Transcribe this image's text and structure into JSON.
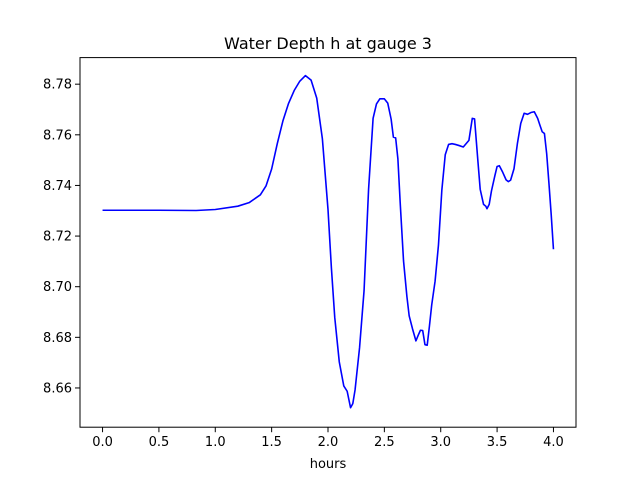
{
  "chart_data": {
    "type": "line",
    "title": "Water Depth h at gauge 3",
    "xlabel": "hours",
    "ylabel": "",
    "xlim": [
      -0.2,
      4.2
    ],
    "ylim": [
      8.6445,
      8.7905
    ],
    "xticks": [
      0.0,
      0.5,
      1.0,
      1.5,
      2.0,
      2.5,
      3.0,
      3.5,
      4.0
    ],
    "xtick_labels": [
      "0.0",
      "0.5",
      "1.0",
      "1.5",
      "2.0",
      "2.5",
      "3.0",
      "3.5",
      "4.0"
    ],
    "yticks": [
      8.66,
      8.68,
      8.7,
      8.72,
      8.74,
      8.76,
      8.78
    ],
    "ytick_labels": [
      "8.66",
      "8.68",
      "8.70",
      "8.72",
      "8.74",
      "8.76",
      "8.78"
    ],
    "grid": false,
    "series": [
      {
        "color": "#0000ff",
        "x": [
          0.0,
          0.5,
          0.83,
          1.0,
          1.2,
          1.3,
          1.4,
          1.45,
          1.5,
          1.55,
          1.6,
          1.65,
          1.7,
          1.75,
          1.8,
          1.85,
          1.9,
          1.95,
          2.0,
          2.03,
          2.06,
          2.1,
          2.14,
          2.17,
          2.2,
          2.22,
          2.24,
          2.28,
          2.32,
          2.36,
          2.4,
          2.43,
          2.46,
          2.5,
          2.53,
          2.56,
          2.58,
          2.6,
          2.62,
          2.64,
          2.67,
          2.7,
          2.72,
          2.75,
          2.78,
          2.8,
          2.82,
          2.84,
          2.86,
          2.88,
          2.9,
          2.92,
          2.95,
          2.98,
          3.01,
          3.04,
          3.07,
          3.1,
          3.13,
          3.16,
          3.2,
          3.25,
          3.28,
          3.3,
          3.33,
          3.35,
          3.38,
          3.4,
          3.41,
          3.43,
          3.45,
          3.48,
          3.5,
          3.52,
          3.55,
          3.58,
          3.6,
          3.62,
          3.65,
          3.68,
          3.71,
          3.74,
          3.77,
          3.8,
          3.83,
          3.86,
          3.88,
          3.9,
          3.92,
          3.94,
          3.96,
          3.98,
          4.0
        ],
        "y": [
          8.7302,
          8.7302,
          8.7301,
          8.7305,
          8.7318,
          8.7332,
          8.7363,
          8.7398,
          8.7465,
          8.7565,
          8.7655,
          8.7724,
          8.7775,
          8.7812,
          8.7834,
          8.7816,
          8.7745,
          8.7585,
          8.7305,
          8.7075,
          8.6878,
          8.6703,
          8.6608,
          8.6587,
          8.6522,
          8.6538,
          8.6592,
          8.6759,
          8.6985,
          8.7385,
          8.7665,
          8.7722,
          8.7742,
          8.7742,
          8.7725,
          8.7662,
          8.7591,
          8.7588,
          8.7505,
          8.7335,
          8.7102,
          8.6961,
          8.6885,
          8.6833,
          8.6786,
          8.6808,
          8.6828,
          8.6827,
          8.6771,
          8.6769,
          8.6845,
          8.6928,
          8.7022,
          8.7165,
          8.7382,
          8.7521,
          8.7562,
          8.7565,
          8.7562,
          8.7558,
          8.7552,
          8.7578,
          8.7665,
          8.7663,
          8.7495,
          8.7385,
          8.7325,
          8.7318,
          8.7308,
          8.7325,
          8.7378,
          8.7438,
          8.7475,
          8.7478,
          8.7452,
          8.7422,
          8.7415,
          8.7421,
          8.7466,
          8.7565,
          8.7645,
          8.7685,
          8.7681,
          8.7688,
          8.7691,
          8.7665,
          8.7638,
          8.7612,
          8.7605,
          8.7525,
          8.7408,
          8.7285,
          8.7148
        ]
      }
    ]
  }
}
